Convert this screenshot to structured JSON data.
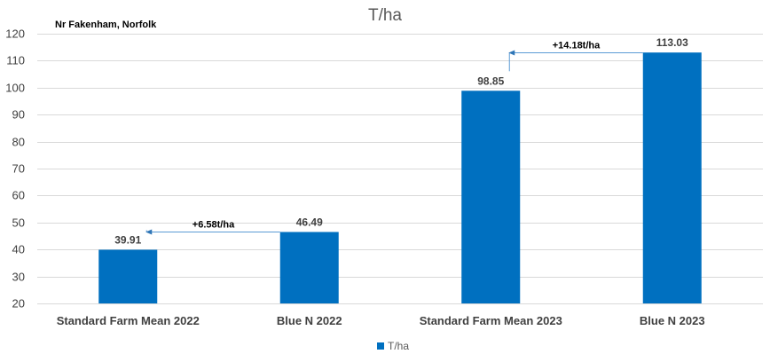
{
  "chart_data": {
    "type": "bar",
    "title": "T/ha",
    "subtitle": "Nr Fakenham, Norfolk",
    "categories": [
      "Standard Farm Mean 2022",
      "Blue N 2022",
      "Standard Farm Mean 2023",
      "Blue N 2023"
    ],
    "series": [
      {
        "name": "T/ha",
        "values": [
          39.91,
          46.49,
          98.85,
          113.03
        ],
        "data_labels": [
          "39.91",
          "46.49",
          "98.85",
          "113.03"
        ]
      }
    ],
    "ylim": [
      20,
      120
    ],
    "yticks": [
      20,
      30,
      40,
      50,
      60,
      70,
      80,
      90,
      100,
      110,
      120
    ],
    "grid": true,
    "legend": "bottom",
    "bar_color": "#0070c0",
    "annotations": [
      {
        "text": "+6.58t/ha",
        "from_category": 1,
        "to_category": 0,
        "value": 46.49
      },
      {
        "text": "+14.18t/ha",
        "from_category": 3,
        "to_category": 2,
        "value": 113.03
      }
    ]
  }
}
